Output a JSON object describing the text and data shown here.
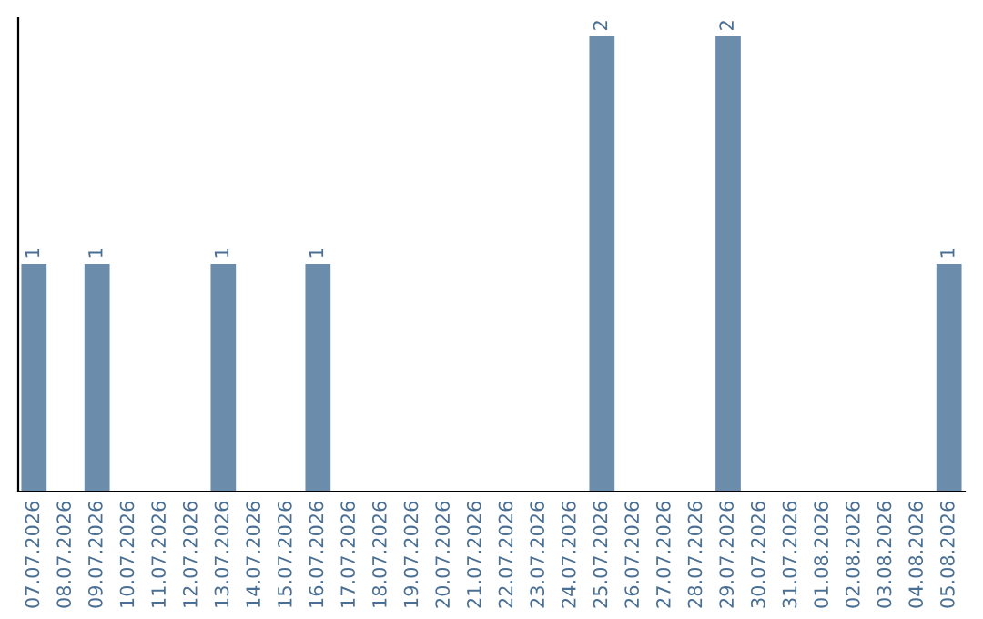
{
  "chart_data": {
    "type": "bar",
    "categories": [
      "07.07.2026",
      "08.07.2026",
      "09.07.2026",
      "10.07.2026",
      "11.07.2026",
      "12.07.2026",
      "13.07.2026",
      "14.07.2026",
      "15.07.2026",
      "16.07.2026",
      "17.07.2026",
      "18.07.2026",
      "19.07.2026",
      "20.07.2026",
      "21.07.2026",
      "22.07.2026",
      "23.07.2026",
      "24.07.2026",
      "25.07.2026",
      "26.07.2026",
      "27.07.2026",
      "28.07.2026",
      "29.07.2026",
      "30.07.2026",
      "31.07.2026",
      "01.08.2026",
      "02.08.2026",
      "03.08.2026",
      "04.08.2026",
      "05.08.2026"
    ],
    "values": [
      1,
      0,
      1,
      0,
      0,
      0,
      1,
      0,
      0,
      1,
      0,
      0,
      0,
      0,
      0,
      0,
      0,
      0,
      2,
      0,
      0,
      0,
      2,
      0,
      0,
      0,
      0,
      0,
      0,
      1
    ],
    "value_labels": [
      "1",
      null,
      "1",
      null,
      null,
      null,
      "1",
      null,
      null,
      "1",
      null,
      null,
      null,
      null,
      null,
      null,
      null,
      null,
      "2",
      null,
      null,
      null,
      "2",
      null,
      null,
      null,
      null,
      null,
      null,
      "1"
    ],
    "color": "#6b8cab",
    "grid": false,
    "tick_labels": "x"
  }
}
